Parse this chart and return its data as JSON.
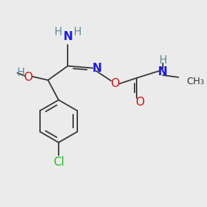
{
  "bg_color": "#ebebeb",
  "bond_color": "#3a3a3a",
  "lw": 1.4,
  "figsize": [
    3.0,
    3.0
  ],
  "dpi": 100,
  "xlim": [
    -0.5,
    2.2
  ],
  "ylim": [
    -1.3,
    1.1
  ],
  "colors": {
    "N": "#1a1adc",
    "O": "#cc1a1a",
    "Cl": "#2db82d",
    "H": "#5a8a9a",
    "C": "#3a3a3a"
  }
}
